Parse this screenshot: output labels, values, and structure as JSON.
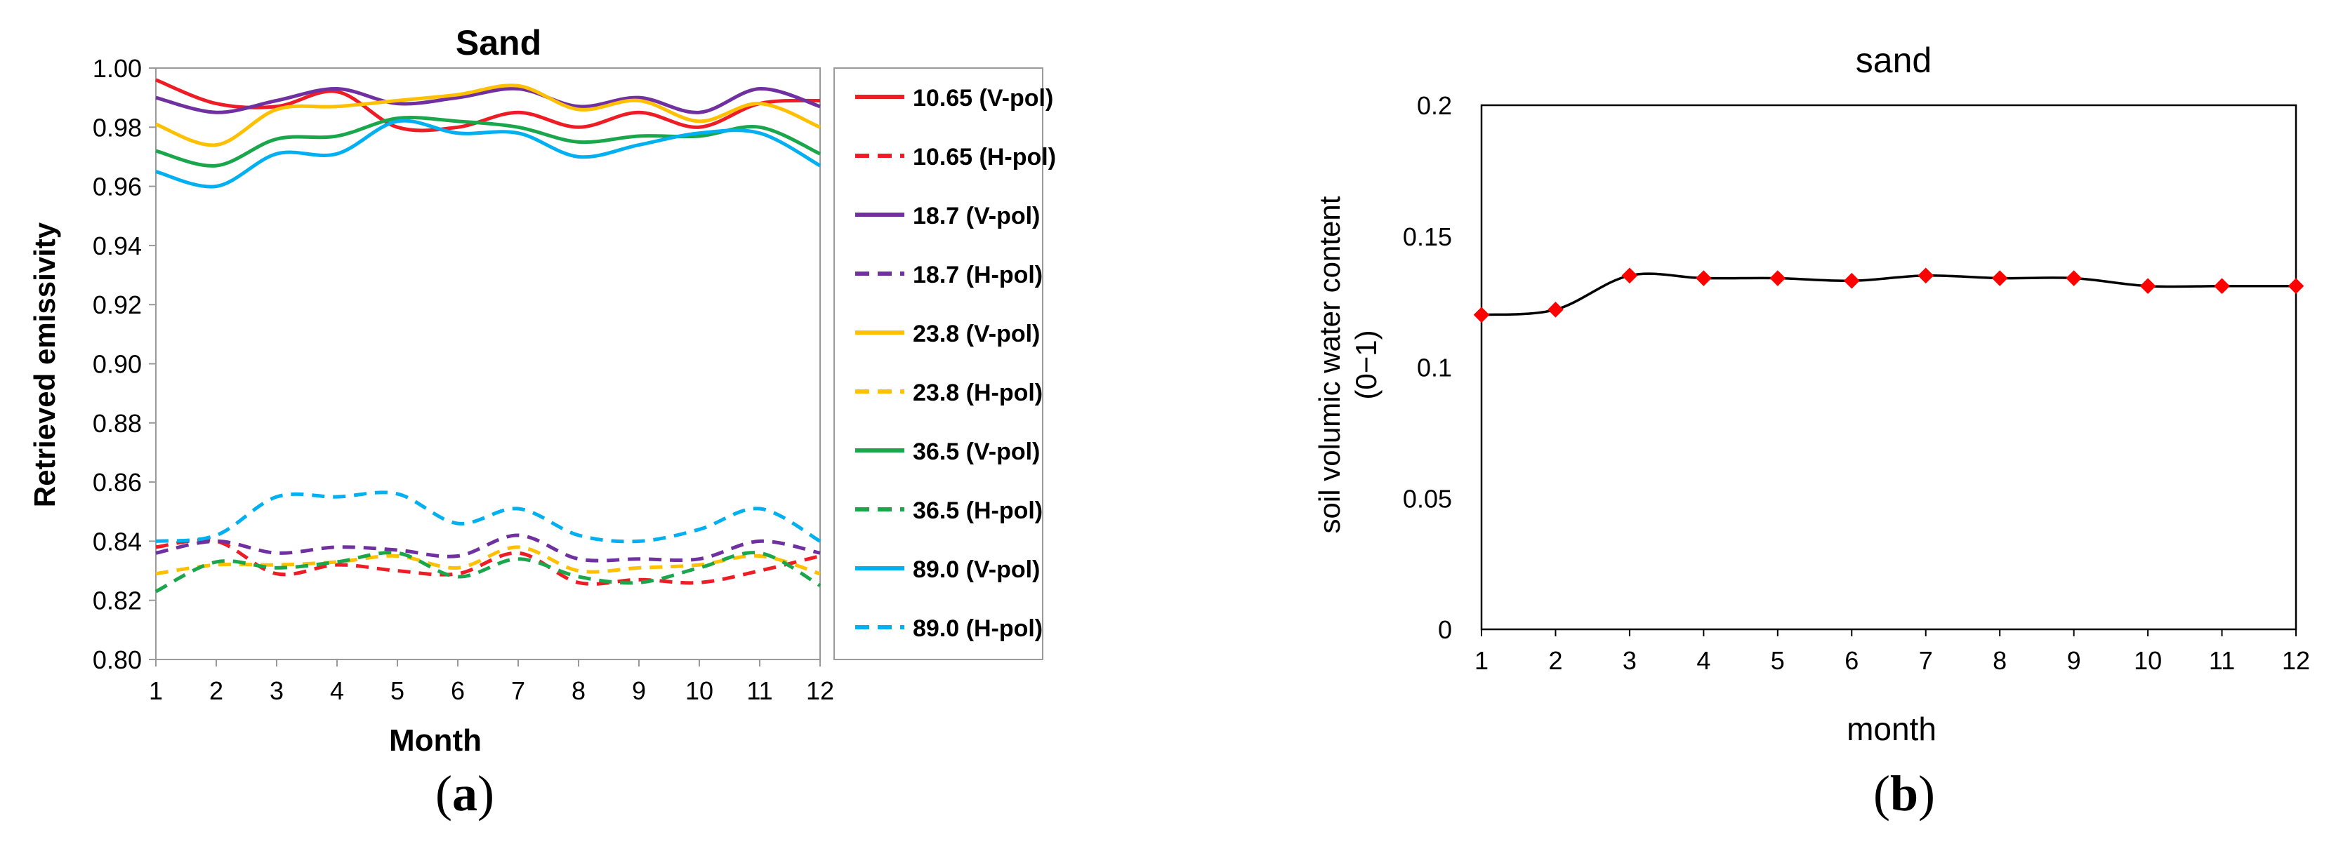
{
  "chart_data": [
    {
      "type": "line",
      "title": "Sand",
      "xlabel": "Month",
      "ylabel": "Retrieved emissivity",
      "xlim": [
        1,
        12
      ],
      "ylim": [
        0.8,
        1.0
      ],
      "x": [
        1,
        2,
        3,
        4,
        5,
        6,
        7,
        8,
        9,
        10,
        11,
        12
      ],
      "yticks": [
        "0.80",
        "0.82",
        "0.84",
        "0.86",
        "0.88",
        "0.90",
        "0.92",
        "0.94",
        "0.96",
        "0.98",
        "1.00"
      ],
      "xticks": [
        "1",
        "2",
        "3",
        "4",
        "5",
        "6",
        "7",
        "8",
        "9",
        "10",
        "11",
        "12"
      ],
      "legend_position": "right",
      "series": [
        {
          "name": "10.65 (V-pol)",
          "color": "#ee1c25",
          "dash": false,
          "values": [
            0.996,
            0.988,
            0.987,
            0.992,
            0.98,
            0.98,
            0.985,
            0.98,
            0.985,
            0.98,
            0.988,
            0.989
          ]
        },
        {
          "name": "10.65 (H-pol)",
          "color": "#ee1c25",
          "dash": true,
          "values": [
            0.838,
            0.84,
            0.829,
            0.832,
            0.83,
            0.829,
            0.836,
            0.826,
            0.827,
            0.826,
            0.83,
            0.835
          ]
        },
        {
          "name": "18.7  (V-pol)",
          "color": "#7030a0",
          "dash": false,
          "values": [
            0.99,
            0.985,
            0.989,
            0.993,
            0.988,
            0.99,
            0.993,
            0.987,
            0.99,
            0.985,
            0.993,
            0.987
          ]
        },
        {
          "name": "18.7  (H-pol)",
          "color": "#7030a0",
          "dash": true,
          "values": [
            0.836,
            0.84,
            0.836,
            0.838,
            0.837,
            0.835,
            0.842,
            0.834,
            0.834,
            0.834,
            0.84,
            0.836
          ]
        },
        {
          "name": "23.8  (V-pol)",
          "color": "#ffc000",
          "dash": false,
          "values": [
            0.981,
            0.974,
            0.986,
            0.987,
            0.989,
            0.991,
            0.994,
            0.986,
            0.989,
            0.982,
            0.988,
            0.98
          ]
        },
        {
          "name": "23.8  (H-pol)",
          "color": "#ffc000",
          "dash": true,
          "values": [
            0.829,
            0.832,
            0.832,
            0.833,
            0.835,
            0.831,
            0.838,
            0.83,
            0.831,
            0.832,
            0.835,
            0.829
          ]
        },
        {
          "name": "36.5  (V-pol)",
          "color": "#1aa64b",
          "dash": false,
          "values": [
            0.972,
            0.967,
            0.976,
            0.977,
            0.983,
            0.982,
            0.98,
            0.975,
            0.977,
            0.977,
            0.98,
            0.971
          ]
        },
        {
          "name": "36.5  (H-pol)",
          "color": "#1aa64b",
          "dash": true,
          "values": [
            0.823,
            0.833,
            0.831,
            0.833,
            0.836,
            0.828,
            0.834,
            0.828,
            0.826,
            0.831,
            0.836,
            0.825
          ]
        },
        {
          "name": "89.0  (V-pol)",
          "color": "#00b0f0",
          "dash": false,
          "values": [
            0.965,
            0.96,
            0.971,
            0.971,
            0.982,
            0.978,
            0.978,
            0.97,
            0.974,
            0.978,
            0.978,
            0.967
          ]
        },
        {
          "name": "89.0  (H-pol)",
          "color": "#00b0f0",
          "dash": true,
          "values": [
            0.84,
            0.842,
            0.855,
            0.855,
            0.856,
            0.846,
            0.851,
            0.842,
            0.84,
            0.844,
            0.851,
            0.84
          ]
        }
      ]
    },
    {
      "type": "line",
      "title": "sand",
      "xlabel": "month",
      "ylabel": "soil volumic water content",
      "ylabel_unit": "(0−1)",
      "xlim": [
        1,
        12
      ],
      "ylim": [
        0,
        0.2
      ],
      "x": [
        1,
        2,
        3,
        4,
        5,
        6,
        7,
        8,
        9,
        10,
        11,
        12
      ],
      "yticks": [
        "0",
        "0.05",
        "0.1",
        "0.15",
        "0.2"
      ],
      "xticks": [
        "1",
        "2",
        "3",
        "4",
        "5",
        "6",
        "7",
        "8",
        "9",
        "10",
        "11",
        "12"
      ],
      "series": [
        {
          "name": "soil volumic water content",
          "line_color": "#000000",
          "marker_color": "#ff0000",
          "values": [
            0.12,
            0.122,
            0.135,
            0.134,
            0.134,
            0.133,
            0.135,
            0.134,
            0.134,
            0.131,
            0.131,
            0.131
          ]
        }
      ]
    }
  ],
  "captions": {
    "a": {
      "open": "(",
      "letter": "a",
      "close": ")"
    },
    "b": {
      "open": "(",
      "letter": "b",
      "close": ")"
    }
  }
}
